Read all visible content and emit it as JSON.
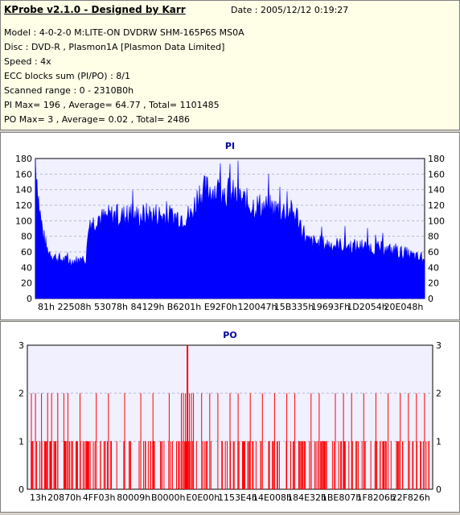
{
  "header": {
    "title": "KProbe v2.1.0 - Designed by Karr",
    "date": "Date : 2005/12/12 0:19:27",
    "lines": [
      "Model : 4-0-2-0 M:LITE-ON DVDRW SHM-165P6S MS0A",
      "Disc : DVD-R , Plasmon1A [Plasmon Data Limited]",
      "Speed : 4x",
      "ECC blocks sum (PI/PO) : 8/1",
      "Scanned range : 0 - 2310B0h",
      "PI Max= 196 , Average= 64.77 , Total= 1101485",
      "PO Max= 3 , Average= 0.02 , Total= 2486"
    ]
  },
  "colors": {
    "pi": "#0000ff",
    "po": "#ff0000",
    "title": "#0000a0",
    "plot_bg": "#f0f0ff",
    "grid": "#b8b8d8"
  },
  "chart_data": [
    {
      "type": "bar",
      "title": "PI",
      "grid": true,
      "ylim": [
        0,
        180
      ],
      "yticks": [
        0,
        20,
        40,
        60,
        80,
        100,
        120,
        140,
        160,
        180
      ],
      "xticks": [
        "81h",
        "22508h",
        "53078h",
        "84129h",
        "B6201h",
        "E92F0h",
        "120047h",
        "15B335h",
        "19693Fh",
        "1D2054h",
        "20E048h"
      ],
      "x_fraction": [
        0,
        0.01,
        0.02,
        0.03,
        0.05,
        0.08,
        0.11,
        0.13,
        0.14,
        0.15,
        0.16,
        0.17,
        0.2,
        0.25,
        0.3,
        0.35,
        0.4,
        0.42,
        0.45,
        0.5,
        0.55,
        0.6,
        0.65,
        0.67,
        0.7,
        0.75,
        0.8,
        0.85,
        0.9,
        0.95,
        1.0
      ],
      "values": [
        190,
        120,
        85,
        65,
        55,
        50,
        50,
        52,
        105,
        100,
        110,
        105,
        110,
        108,
        112,
        108,
        110,
        140,
        145,
        140,
        125,
        120,
        115,
        112,
        75,
        72,
        70,
        68,
        65,
        60,
        50
      ],
      "max_value": 196
    },
    {
      "type": "bar",
      "title": "PO",
      "grid": true,
      "ylim": [
        0,
        3
      ],
      "yticks": [
        0,
        1,
        2,
        3
      ],
      "xticks": [
        "13h",
        "20870h",
        "4FF03h",
        "80009h",
        "B0000h",
        "E0E00h",
        "1153E4h",
        "14E008h",
        "184E32h",
        "1BE807h",
        "1F8206h",
        "22F826h"
      ],
      "spikes_at_2": [
        0.01,
        0.02,
        0.035,
        0.05,
        0.06,
        0.075,
        0.09,
        0.1,
        0.13,
        0.17,
        0.2,
        0.24,
        0.28,
        0.31,
        0.35,
        0.38,
        0.385,
        0.39,
        0.4,
        0.405,
        0.41,
        0.43,
        0.45,
        0.47,
        0.5,
        0.52,
        0.55,
        0.58,
        0.61,
        0.64,
        0.66,
        0.7,
        0.72,
        0.76,
        0.78,
        0.8,
        0.83,
        0.86,
        0.89,
        0.92,
        0.94,
        0.96,
        0.98
      ],
      "spikes_at_1_count": 220,
      "spike_at_3": 0.395
    }
  ]
}
